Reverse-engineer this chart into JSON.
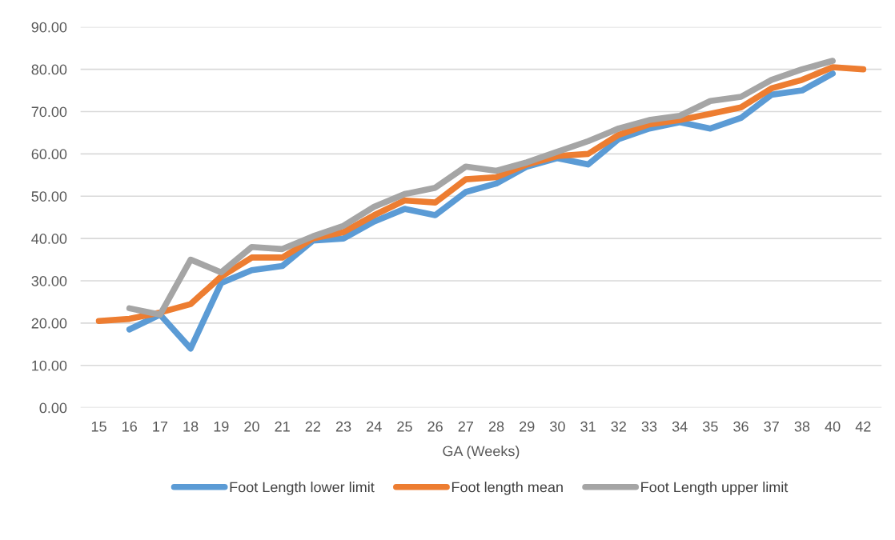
{
  "chart_data": {
    "type": "line",
    "xlabel": "GA (Weeks)",
    "categories": [
      "15",
      "16",
      "17",
      "18",
      "19",
      "20",
      "21",
      "22",
      "23",
      "24",
      "25",
      "26",
      "27",
      "28",
      "29",
      "30",
      "31",
      "32",
      "33",
      "34",
      "35",
      "36",
      "37",
      "38",
      "40",
      "42"
    ],
    "series": [
      {
        "name": "Foot Length lower limit",
        "color": "#5b9bd5",
        "values": [
          null,
          18.5,
          22,
          14,
          29.5,
          32.5,
          33.5,
          39.5,
          40,
          44,
          47,
          45.5,
          51,
          53,
          57,
          59,
          57.5,
          63.5,
          66,
          67.5,
          66,
          68.5,
          74,
          75,
          79,
          null
        ]
      },
      {
        "name": "Foot length mean",
        "color": "#ed7d31",
        "values": [
          20.5,
          21,
          22.5,
          24.5,
          31,
          35.5,
          35.5,
          40,
          41.5,
          45.5,
          49,
          48.5,
          54,
          54.5,
          57.5,
          59.5,
          60,
          64.5,
          67,
          68,
          69.5,
          71,
          75.5,
          77.5,
          80.5,
          80
        ]
      },
      {
        "name": "Foot Length upper limit",
        "color": "#a5a5a5",
        "values": [
          null,
          23.5,
          22,
          35,
          32,
          38,
          37.5,
          40.5,
          43,
          47.5,
          50.5,
          52,
          57,
          56,
          58,
          60.5,
          63,
          66,
          68,
          69,
          72.5,
          73.5,
          77.5,
          80,
          82,
          null
        ]
      }
    ],
    "ylim": [
      0,
      90
    ],
    "yticks": [
      {
        "value": 0,
        "label": "0.00"
      },
      {
        "value": 10,
        "label": "10.00"
      },
      {
        "value": 20,
        "label": "20.00"
      },
      {
        "value": 30,
        "label": "30.00"
      },
      {
        "value": 40,
        "label": "40.00"
      },
      {
        "value": 50,
        "label": "50.00"
      },
      {
        "value": 60,
        "label": "60.00"
      },
      {
        "value": 70,
        "label": "70.00"
      },
      {
        "value": 80,
        "label": "80.00"
      },
      {
        "value": 90,
        "label": "90.00"
      }
    ],
    "grid": "y",
    "legend": "bottom",
    "marker": "none",
    "line_style": "solid"
  }
}
